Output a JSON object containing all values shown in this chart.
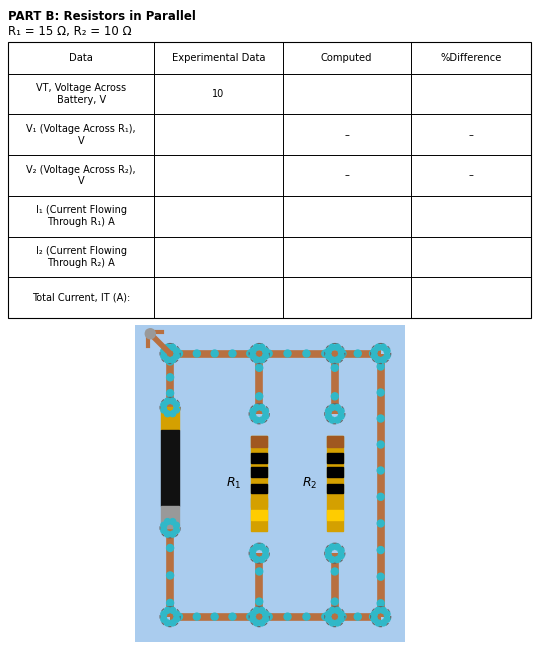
{
  "title_line1": "PART B: Resistors in Parallel",
  "title_line2": "R₁ = 15 Ω, R₂ = 10 Ω",
  "col_headers": [
    "Data",
    "Experimental Data",
    "Computed",
    "%Difference"
  ],
  "rows": [
    [
      "VT, Voltage Across\nBattery, V",
      "10",
      "",
      ""
    ],
    [
      "V₁ (Voltage Across R₁),\nV",
      "",
      "–",
      "–"
    ],
    [
      "V₂ (Voltage Across R₂),\nV",
      "",
      "–",
      "–"
    ],
    [
      "I₁ (Current Flowing\nThrough R₁) A",
      "",
      "",
      ""
    ],
    [
      "I₂ (Current Flowing\nThrough R₂) A",
      "",
      "",
      ""
    ],
    [
      "Total Current, IT (A):",
      "",
      "",
      ""
    ]
  ],
  "bg_color": "#ffffff",
  "circuit_bg": "#aaccee",
  "wire_color": "#b87040",
  "teal_color": "#30b8c8",
  "junction_edge": "#666666"
}
